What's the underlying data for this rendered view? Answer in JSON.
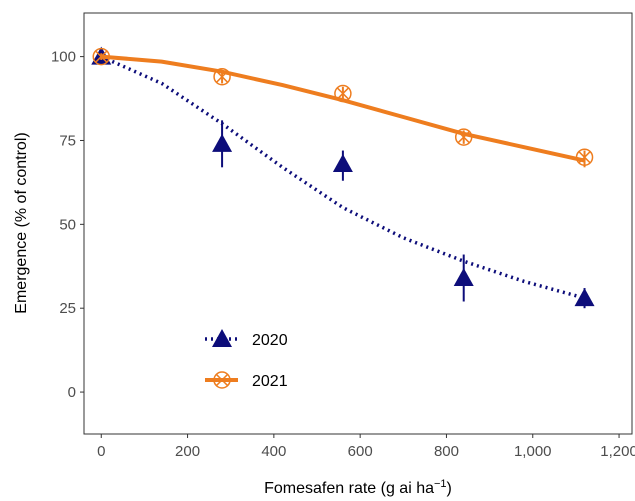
{
  "chart_data": {
    "type": "scatter",
    "xlabel_main": "Fomesafen rate (g ai ha",
    "xlabel_sup": "−1",
    "xlabel_close": ")",
    "ylabel": "Emergence (% of control)",
    "xlim": [
      -40,
      1230
    ],
    "ylim": [
      -12.5,
      113
    ],
    "x_ticks": [
      0,
      200,
      400,
      600,
      800,
      1000,
      1200
    ],
    "x_tick_labels": [
      "0",
      "200",
      "400",
      "600",
      "800",
      "1,000",
      "1,200"
    ],
    "y_ticks": [
      0,
      25,
      50,
      75,
      100
    ],
    "y_tick_labels": [
      "0",
      "25",
      "50",
      "75",
      "100"
    ],
    "legend_position": "bottom-left",
    "series": [
      {
        "name": "2020",
        "color": "#0d0d7a",
        "marker": "triangle",
        "line_style": "dotted",
        "points": [
          {
            "x": 0,
            "y": 100,
            "lo": 98,
            "hi": 101
          },
          {
            "x": 280,
            "y": 74,
            "lo": 67,
            "hi": 81
          },
          {
            "x": 560,
            "y": 68,
            "lo": 63,
            "hi": 72
          },
          {
            "x": 840,
            "y": 34,
            "lo": 27,
            "hi": 41
          },
          {
            "x": 1120,
            "y": 28,
            "lo": 25,
            "hi": 31
          }
        ],
        "fit": [
          {
            "x": 0,
            "y": 100
          },
          {
            "x": 140,
            "y": 92
          },
          {
            "x": 280,
            "y": 80
          },
          {
            "x": 420,
            "y": 67
          },
          {
            "x": 560,
            "y": 55
          },
          {
            "x": 700,
            "y": 46
          },
          {
            "x": 840,
            "y": 39
          },
          {
            "x": 980,
            "y": 33
          },
          {
            "x": 1120,
            "y": 28
          }
        ]
      },
      {
        "name": "2021",
        "color": "#ee7d1f",
        "marker": "crossed-circle",
        "line_style": "solid",
        "points": [
          {
            "x": 0,
            "y": 100,
            "lo": 99,
            "hi": 101
          },
          {
            "x": 280,
            "y": 94,
            "lo": 92,
            "hi": 96
          },
          {
            "x": 560,
            "y": 89,
            "lo": 87,
            "hi": 91
          },
          {
            "x": 840,
            "y": 76,
            "lo": 74,
            "hi": 78
          },
          {
            "x": 1120,
            "y": 70,
            "lo": 67,
            "hi": 72
          }
        ],
        "fit": [
          {
            "x": 0,
            "y": 100
          },
          {
            "x": 140,
            "y": 98.5
          },
          {
            "x": 280,
            "y": 95.5
          },
          {
            "x": 420,
            "y": 91.5
          },
          {
            "x": 560,
            "y": 87
          },
          {
            "x": 700,
            "y": 82
          },
          {
            "x": 840,
            "y": 77
          },
          {
            "x": 980,
            "y": 73
          },
          {
            "x": 1120,
            "y": 69
          }
        ]
      }
    ]
  }
}
